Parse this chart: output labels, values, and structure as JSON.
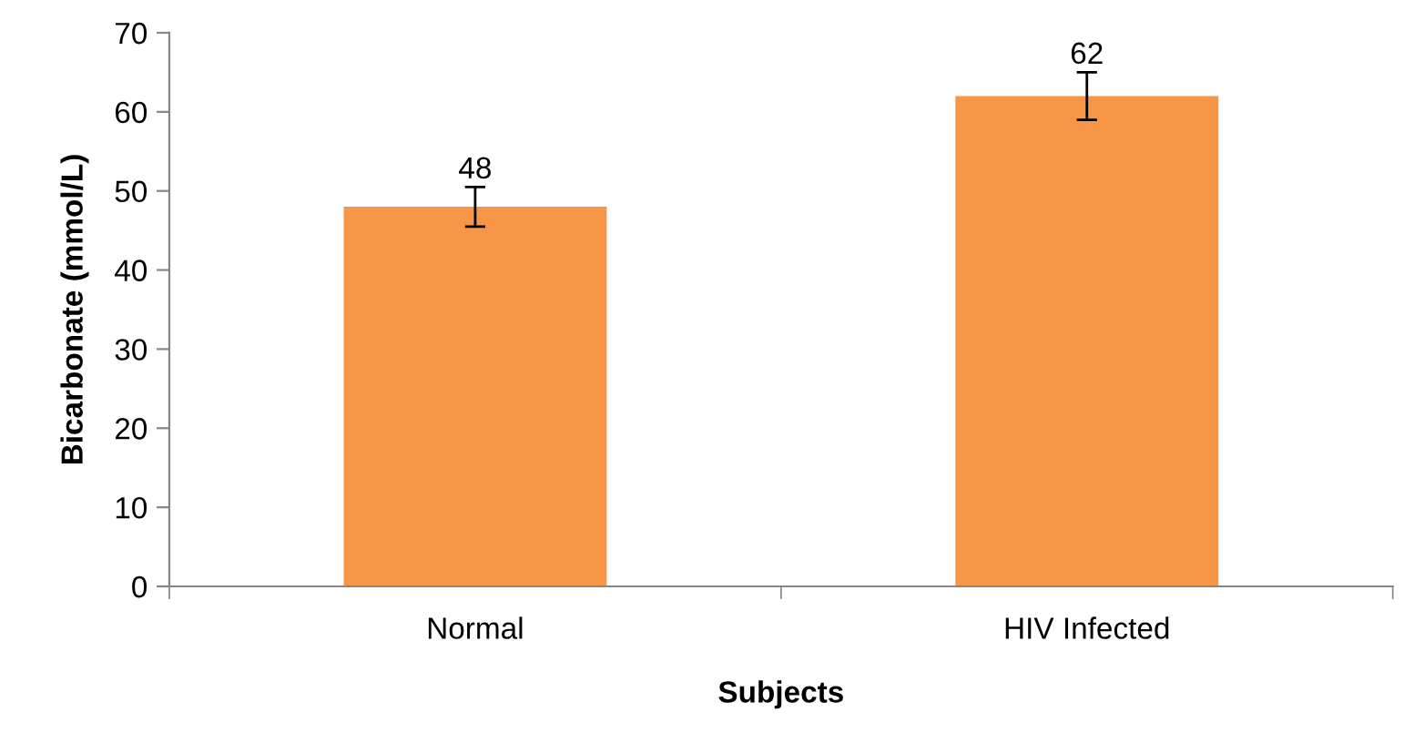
{
  "chart_data": {
    "type": "bar",
    "xlabel": "Subjects",
    "ylabel": "Bicarbonate (mmol/L)",
    "categories": [
      "Normal",
      "HIV Infected"
    ],
    "values": [
      48,
      62
    ],
    "errors": [
      2.5,
      3
    ],
    "color": "#f79646",
    "ylim": [
      0,
      70
    ],
    "yticks": [
      0,
      10,
      20,
      30,
      40,
      50,
      60,
      70
    ],
    "data_labels": true,
    "grid": false,
    "legend": false
  }
}
